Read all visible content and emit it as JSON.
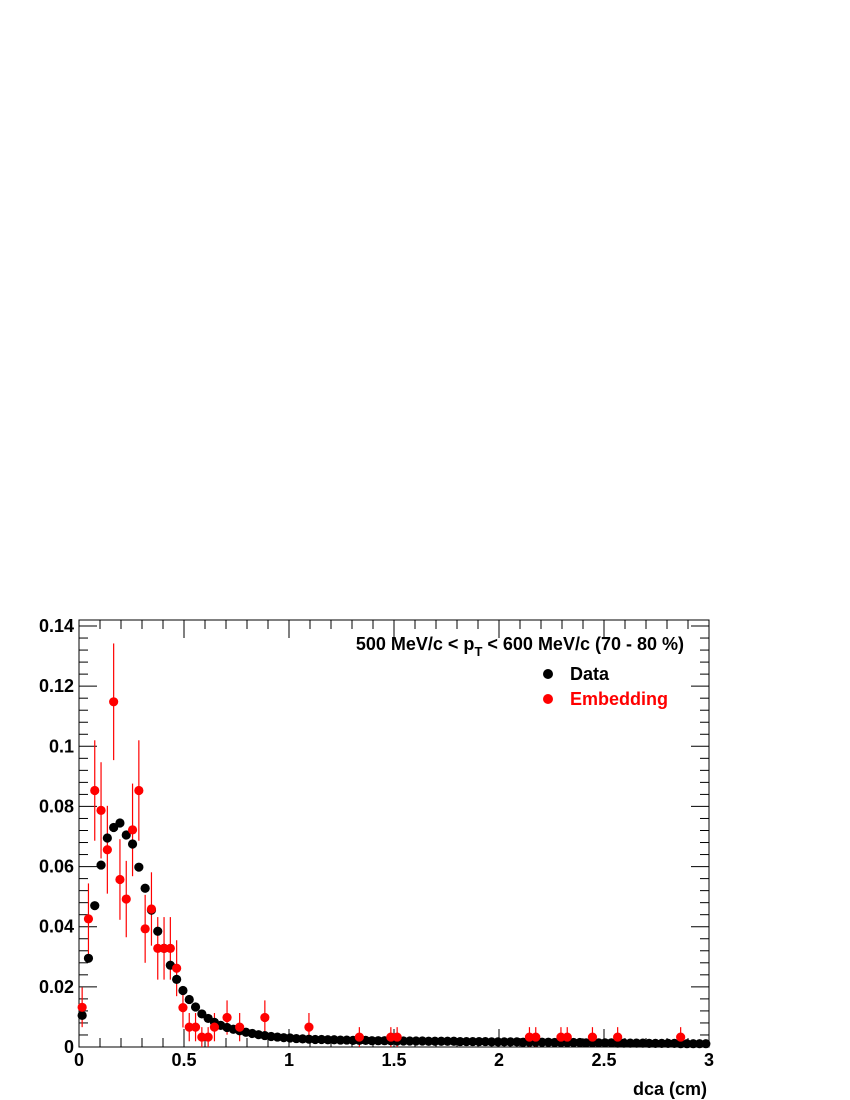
{
  "chart_data": {
    "type": "scatter",
    "title_parts": {
      "prefix": "500 MeV/c < p",
      "subscript": "T",
      "suffix": " < 600 MeV/c (70 - 80 %)"
    },
    "xlabel": "dca (cm)",
    "ylabel": "",
    "xlim": [
      0,
      3
    ],
    "ylim": [
      0,
      0.142
    ],
    "x_ticks": [
      0,
      0.5,
      1,
      1.5,
      2,
      2.5,
      3
    ],
    "x_tick_labels": [
      "0",
      "0.5",
      "1",
      "1.5",
      "2",
      "2.5",
      "3"
    ],
    "y_ticks": [
      0,
      0.02,
      0.04,
      0.06,
      0.08,
      0.1,
      0.12,
      0.14
    ],
    "y_tick_labels": [
      "0",
      "0.02",
      "0.04",
      "0.06",
      "0.08",
      "0.1",
      "0.12",
      "0.14"
    ],
    "grid": false,
    "legend_position": "top-right",
    "series": [
      {
        "name": "Data",
        "color": "#000000",
        "points": [
          [
            0.015,
            0.0105
          ],
          [
            0.045,
            0.0295
          ],
          [
            0.075,
            0.047
          ],
          [
            0.105,
            0.0605
          ],
          [
            0.135,
            0.0695
          ],
          [
            0.165,
            0.073
          ],
          [
            0.195,
            0.0745
          ],
          [
            0.225,
            0.0705
          ],
          [
            0.255,
            0.0675
          ],
          [
            0.285,
            0.0598
          ],
          [
            0.315,
            0.0528
          ],
          [
            0.345,
            0.0455
          ],
          [
            0.375,
            0.0385
          ],
          [
            0.405,
            0.0328
          ],
          [
            0.435,
            0.0272
          ],
          [
            0.465,
            0.0225
          ],
          [
            0.495,
            0.0188
          ],
          [
            0.525,
            0.0158
          ],
          [
            0.555,
            0.0133
          ],
          [
            0.585,
            0.011
          ],
          [
            0.615,
            0.0095
          ],
          [
            0.645,
            0.0082
          ],
          [
            0.675,
            0.0072
          ],
          [
            0.705,
            0.0065
          ],
          [
            0.735,
            0.0059
          ],
          [
            0.765,
            0.0054
          ],
          [
            0.795,
            0.0049
          ],
          [
            0.825,
            0.0045
          ],
          [
            0.855,
            0.0041
          ],
          [
            0.885,
            0.0038
          ],
          [
            0.915,
            0.0035
          ],
          [
            0.945,
            0.0033
          ],
          [
            0.975,
            0.0031
          ],
          [
            1.005,
            0.003
          ],
          [
            1.035,
            0.0028
          ],
          [
            1.065,
            0.0027
          ],
          [
            1.095,
            0.0026
          ],
          [
            1.125,
            0.0025
          ],
          [
            1.155,
            0.0025
          ],
          [
            1.185,
            0.0024
          ],
          [
            1.215,
            0.0024
          ],
          [
            1.245,
            0.0023
          ],
          [
            1.275,
            0.0023
          ],
          [
            1.305,
            0.0022
          ],
          [
            1.335,
            0.0022
          ],
          [
            1.365,
            0.0022
          ],
          [
            1.395,
            0.0021
          ],
          [
            1.425,
            0.0021
          ],
          [
            1.455,
            0.0021
          ],
          [
            1.485,
            0.0021
          ],
          [
            1.515,
            0.002
          ],
          [
            1.545,
            0.002
          ],
          [
            1.575,
            0.002
          ],
          [
            1.605,
            0.002
          ],
          [
            1.635,
            0.002
          ],
          [
            1.665,
            0.0019
          ],
          [
            1.695,
            0.0019
          ],
          [
            1.725,
            0.0019
          ],
          [
            1.755,
            0.0019
          ],
          [
            1.785,
            0.0019
          ],
          [
            1.815,
            0.0018
          ],
          [
            1.845,
            0.0018
          ],
          [
            1.875,
            0.0018
          ],
          [
            1.905,
            0.0018
          ],
          [
            1.935,
            0.0018
          ],
          [
            1.965,
            0.0017
          ],
          [
            1.995,
            0.0017
          ],
          [
            2.025,
            0.0017
          ],
          [
            2.055,
            0.0017
          ],
          [
            2.085,
            0.0017
          ],
          [
            2.115,
            0.0016
          ],
          [
            2.145,
            0.0016
          ],
          [
            2.175,
            0.0016
          ],
          [
            2.205,
            0.0016
          ],
          [
            2.235,
            0.0016
          ],
          [
            2.265,
            0.0015
          ],
          [
            2.295,
            0.0015
          ],
          [
            2.325,
            0.0015
          ],
          [
            2.355,
            0.0015
          ],
          [
            2.385,
            0.0015
          ],
          [
            2.415,
            0.0014
          ],
          [
            2.445,
            0.0014
          ],
          [
            2.475,
            0.0014
          ],
          [
            2.505,
            0.0014
          ],
          [
            2.535,
            0.0014
          ],
          [
            2.565,
            0.0013
          ],
          [
            2.595,
            0.0013
          ],
          [
            2.625,
            0.0013
          ],
          [
            2.655,
            0.0013
          ],
          [
            2.685,
            0.0013
          ],
          [
            2.715,
            0.0012
          ],
          [
            2.745,
            0.0012
          ],
          [
            2.775,
            0.0012
          ],
          [
            2.805,
            0.0012
          ],
          [
            2.835,
            0.0012
          ],
          [
            2.865,
            0.0011
          ],
          [
            2.895,
            0.0011
          ],
          [
            2.925,
            0.0011
          ],
          [
            2.955,
            0.0011
          ],
          [
            2.985,
            0.0011
          ]
        ]
      },
      {
        "name": "Embedding",
        "color": "#ff0000",
        "points": [
          [
            0.015,
            0.0132,
            0.0066
          ],
          [
            0.045,
            0.0426,
            0.0118
          ],
          [
            0.075,
            0.0853,
            0.0167
          ],
          [
            0.105,
            0.0787,
            0.016
          ],
          [
            0.135,
            0.0656,
            0.0146
          ],
          [
            0.165,
            0.1148,
            0.0194
          ],
          [
            0.195,
            0.0557,
            0.0134
          ],
          [
            0.225,
            0.0492,
            0.0127
          ],
          [
            0.255,
            0.0722,
            0.0154
          ],
          [
            0.285,
            0.0853,
            0.0167
          ],
          [
            0.315,
            0.0393,
            0.0113
          ],
          [
            0.345,
            0.0459,
            0.0122
          ],
          [
            0.375,
            0.0328,
            0.0104
          ],
          [
            0.405,
            0.0328,
            0.0104
          ],
          [
            0.435,
            0.0328,
            0.0104
          ],
          [
            0.465,
            0.0262,
            0.0093
          ],
          [
            0.495,
            0.0131,
            0.0066
          ],
          [
            0.525,
            0.0066,
            0.0047
          ],
          [
            0.555,
            0.0066,
            0.0047
          ],
          [
            0.585,
            0.0033,
            0.0033
          ],
          [
            0.615,
            0.0033,
            0.0033
          ],
          [
            0.645,
            0.0066,
            0.0047
          ],
          [
            0.705,
            0.0098,
            0.0057
          ],
          [
            0.765,
            0.0066,
            0.0047
          ],
          [
            0.885,
            0.0098,
            0.0057
          ],
          [
            1.095,
            0.0066,
            0.0047
          ],
          [
            1.335,
            0.0033,
            0.0033
          ],
          [
            1.485,
            0.0033,
            0.0033
          ],
          [
            1.515,
            0.0033,
            0.0033
          ],
          [
            2.145,
            0.0033,
            0.0033
          ],
          [
            2.175,
            0.0033,
            0.0033
          ],
          [
            2.295,
            0.0033,
            0.0033
          ],
          [
            2.325,
            0.0033,
            0.0033
          ],
          [
            2.445,
            0.0033,
            0.0033
          ],
          [
            2.565,
            0.0033,
            0.0033
          ],
          [
            2.865,
            0.0033,
            0.0033
          ]
        ]
      }
    ]
  }
}
